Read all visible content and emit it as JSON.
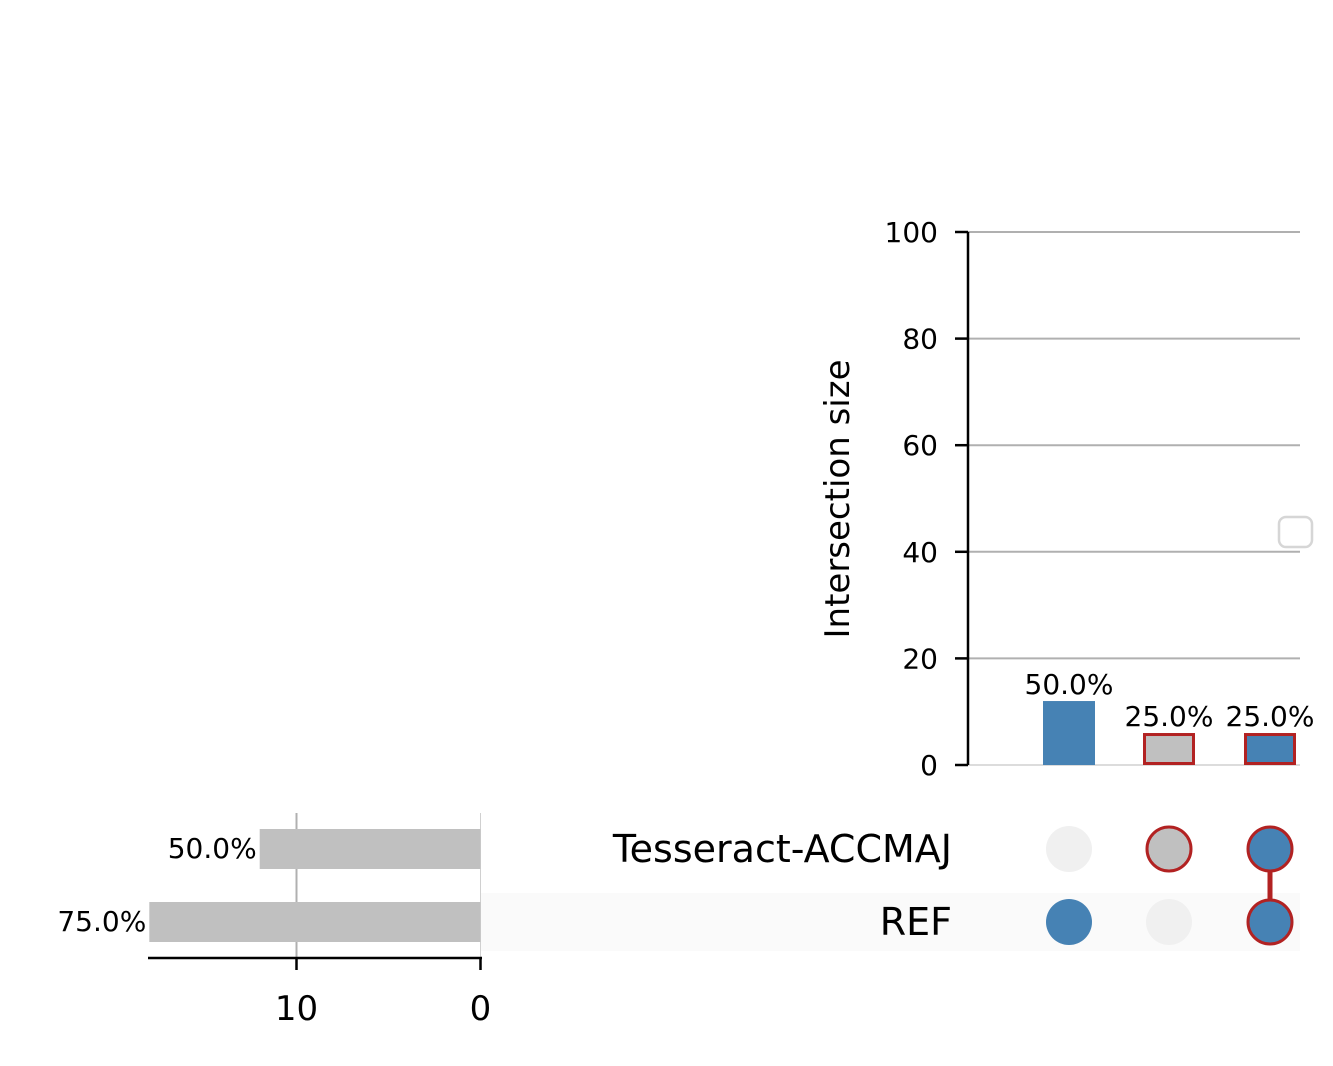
{
  "chart_data": {
    "type": "upset",
    "ylabel": "Intersection size",
    "ylim": [
      0,
      100
    ],
    "yticks": [
      0,
      20,
      40,
      60,
      80,
      100
    ],
    "grid": true,
    "sets": [
      "Tesseract-ACCMAJ",
      "REF"
    ],
    "set_sizes": {
      "values": [
        12,
        18
      ],
      "labels": [
        "50.0%",
        "75.0%"
      ],
      "xticks": [
        10,
        0
      ],
      "xlim": [
        0,
        18
      ]
    },
    "intersections": [
      {
        "members": [
          "REF"
        ],
        "value": 12,
        "label": "50.0%",
        "highlighted": false
      },
      {
        "members": [
          "Tesseract-ACCMAJ"
        ],
        "value": 6,
        "label": "25.0%",
        "highlighted": true
      },
      {
        "members": [
          "Tesseract-ACCMAJ",
          "REF"
        ],
        "value": 6,
        "label": "25.0%",
        "highlighted": true
      }
    ],
    "legend": {
      "placement": "right",
      "entries": []
    }
  },
  "colors": {
    "primary": "#4682b4",
    "set_bar": "#c0c0c0",
    "highlight_edge": "#b22222",
    "inactive_dot": "#f0f0f0",
    "grid": "#b0b0b0",
    "row_shade": "#fafafa"
  }
}
